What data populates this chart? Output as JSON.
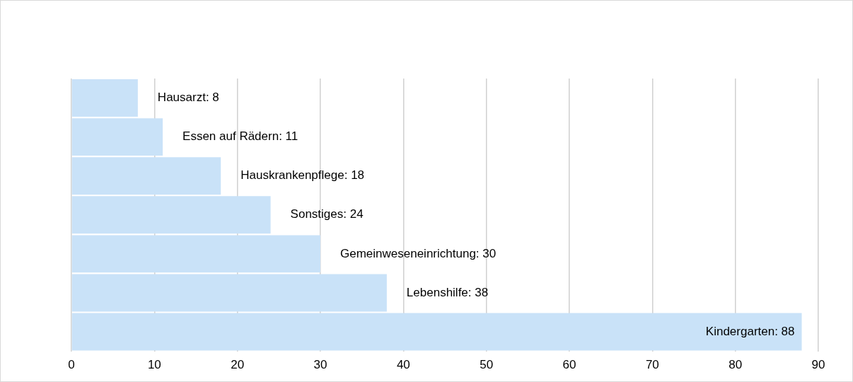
{
  "chart_data": {
    "type": "bar",
    "orientation": "horizontal",
    "categories": [
      null,
      null,
      null,
      null,
      null,
      null,
      null
    ],
    "values": [
      8,
      11,
      18,
      24,
      30,
      38,
      88
    ],
    "value_labels": [
      "Hausarzt: 8",
      "Essen auf Rädern: 11",
      "Hauskrankenpflege: 18",
      "Sonstiges: 24",
      "Gemeinweseneinrichtung: 30",
      "Lebenshilfe: 38",
      "Kindergarten: 88"
    ],
    "color": "#c9e2f8",
    "xlim": [
      0,
      90
    ],
    "xticks": [
      0,
      10,
      20,
      30,
      40,
      50,
      60,
      70,
      80,
      90
    ],
    "grid": "x",
    "tick_labels": "x",
    "legend": false
  }
}
